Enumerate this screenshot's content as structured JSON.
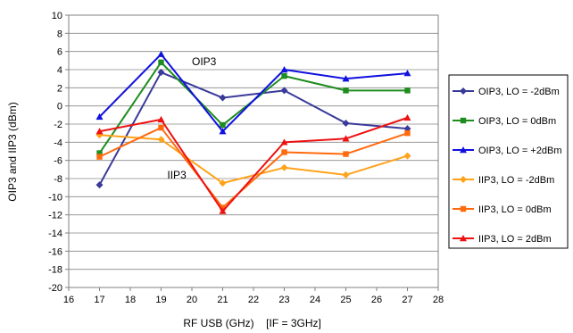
{
  "chart_data": {
    "type": "line",
    "title": "",
    "xlabel": "RF USB (GHz)",
    "xlabel_note": "[IF = 3GHz]",
    "ylabel": "OIP3 and IIP3 (dBm)",
    "xlim": [
      16,
      28
    ],
    "ylim": [
      -20,
      10
    ],
    "xticks": [
      16,
      17,
      18,
      19,
      20,
      21,
      22,
      23,
      24,
      25,
      26,
      27,
      28
    ],
    "yticks": [
      10,
      8,
      6,
      4,
      2,
      0,
      -2,
      -4,
      -6,
      -8,
      -10,
      -12,
      -14,
      -16,
      -18,
      -20
    ],
    "grid": "horizontal",
    "legend_position": "right",
    "x": [
      17,
      19,
      21,
      23,
      25,
      27
    ],
    "series": [
      {
        "name": "OIP3, LO = -2dBm",
        "color": "#3a3a9a",
        "marker": "diamond",
        "values": [
          -8.7,
          3.7,
          0.9,
          1.7,
          -1.9,
          -2.5
        ]
      },
      {
        "name": "OIP3, LO = 0dBm",
        "color": "#1e8c1e",
        "marker": "square",
        "values": [
          -5.2,
          4.8,
          -2.1,
          3.3,
          1.7,
          1.7
        ]
      },
      {
        "name": "OIP3, LO = +2dBm",
        "color": "#1010e0",
        "marker": "triangle",
        "values": [
          -1.2,
          5.7,
          -2.8,
          4.0,
          3.0,
          3.6
        ]
      },
      {
        "name": "IIP3, LO = -2dBm",
        "color": "#ffa31a",
        "marker": "diamond",
        "values": [
          -3.2,
          -3.7,
          -8.5,
          -6.8,
          -7.6,
          -5.5
        ]
      },
      {
        "name": "IIP3, LO = 0dBm",
        "color": "#ff6a0d",
        "marker": "square",
        "values": [
          -5.6,
          -2.4,
          -11.2,
          -5.1,
          -5.3,
          -3.0
        ]
      },
      {
        "name": "IIP3, LO = 2dBm",
        "color": "#ee1111",
        "marker": "triangle",
        "values": [
          -2.8,
          -1.5,
          -11.6,
          -4.0,
          -3.6,
          -1.3
        ]
      }
    ],
    "annotations": [
      {
        "text": "OIP3",
        "x": 20,
        "y": 4.5
      },
      {
        "text": "IIP3",
        "x": 19.2,
        "y": -8
      }
    ]
  }
}
